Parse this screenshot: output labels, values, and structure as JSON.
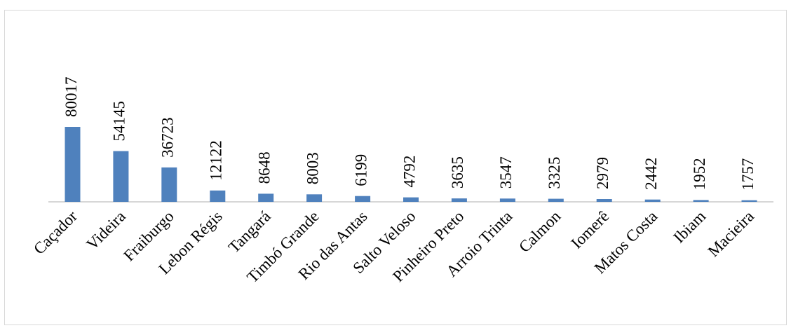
{
  "chart_data": {
    "type": "bar",
    "categories": [
      "Caçador",
      "Videira",
      "Fraiburgo",
      "Lebon Régis",
      "Tangará",
      "Timbó Grande",
      "Rio das Antas",
      "Salto Veloso",
      "Pinheiro Preto",
      "Arroio Trinta",
      "Calmon",
      "Iomerê",
      "Matos Costa",
      "Ibiam",
      "Macieira"
    ],
    "values": [
      80017,
      54145,
      36723,
      12122,
      8648,
      8003,
      6199,
      4792,
      3635,
      3547,
      3325,
      2979,
      2442,
      1952,
      1757
    ],
    "data_labels": [
      "80017",
      "54145",
      "36723",
      "12122",
      "8648",
      "8003",
      "6199",
      "4792",
      "3635",
      "3547",
      "3325",
      "2979",
      "2442",
      "1952",
      "1757"
    ],
    "title": "",
    "xlabel": "",
    "ylabel": "",
    "ylim": [
      0,
      80017
    ],
    "grid": false,
    "legend": "none",
    "bar_color": "#4f81bd",
    "axis_color": "#bfbfbf"
  }
}
